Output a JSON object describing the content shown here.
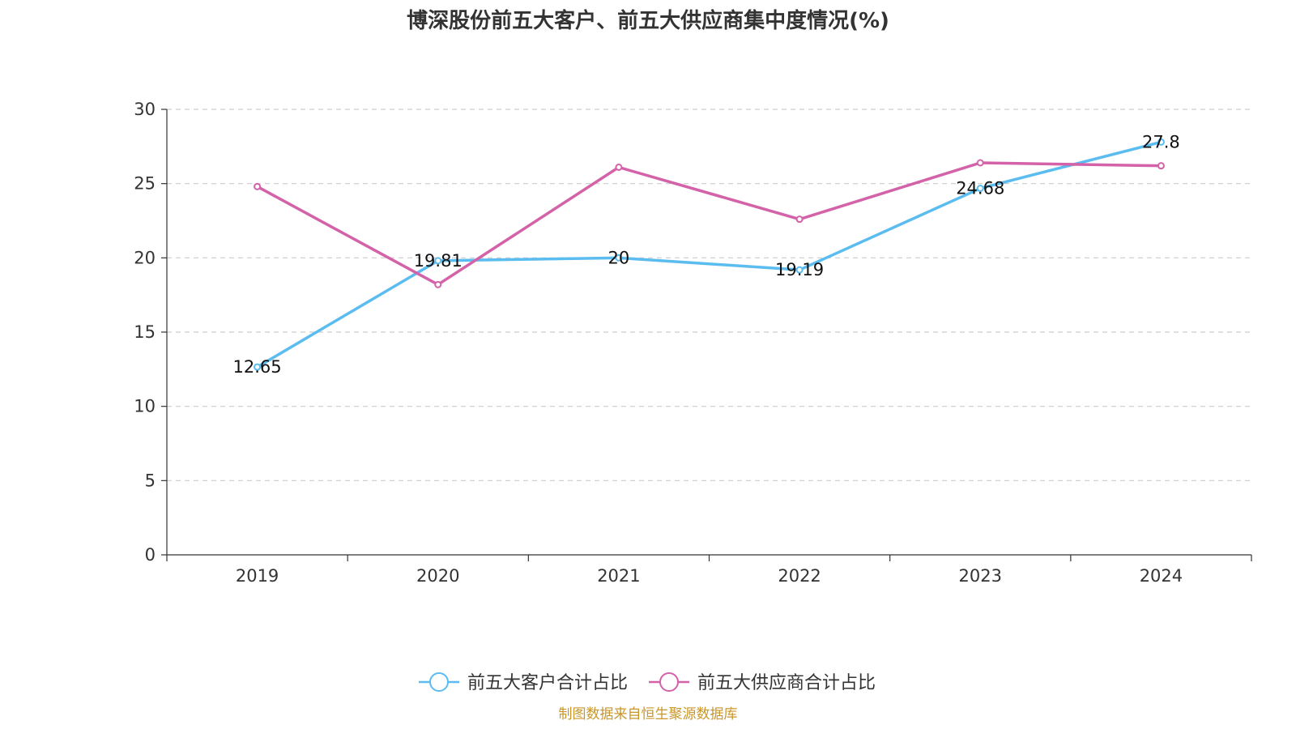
{
  "chart_data": {
    "type": "line",
    "title": "博深股份前五大客户、前五大供应商集中度情况(%)",
    "xlabel": "",
    "ylabel": "",
    "categories": [
      "2019",
      "2020",
      "2021",
      "2022",
      "2023",
      "2024"
    ],
    "ylim": [
      0,
      30
    ],
    "yticks": [
      0,
      5,
      10,
      15,
      20,
      25,
      30
    ],
    "grid": true,
    "legend_position": "bottom",
    "series": [
      {
        "name": "前五大客户合计占比",
        "color": "#5bbcf0",
        "values": [
          12.65,
          19.81,
          20,
          19.19,
          24.68,
          27.8
        ],
        "data_labels": [
          "12.65",
          "19.81",
          "20",
          "19.19",
          "24.68",
          "27.8"
        ]
      },
      {
        "name": "前五大供应商合计占比",
        "color": "#d462a8",
        "values": [
          24.8,
          18.2,
          26.1,
          22.6,
          26.4,
          26.2
        ]
      }
    ]
  },
  "source_note": "制图数据来自恒生聚源数据库"
}
